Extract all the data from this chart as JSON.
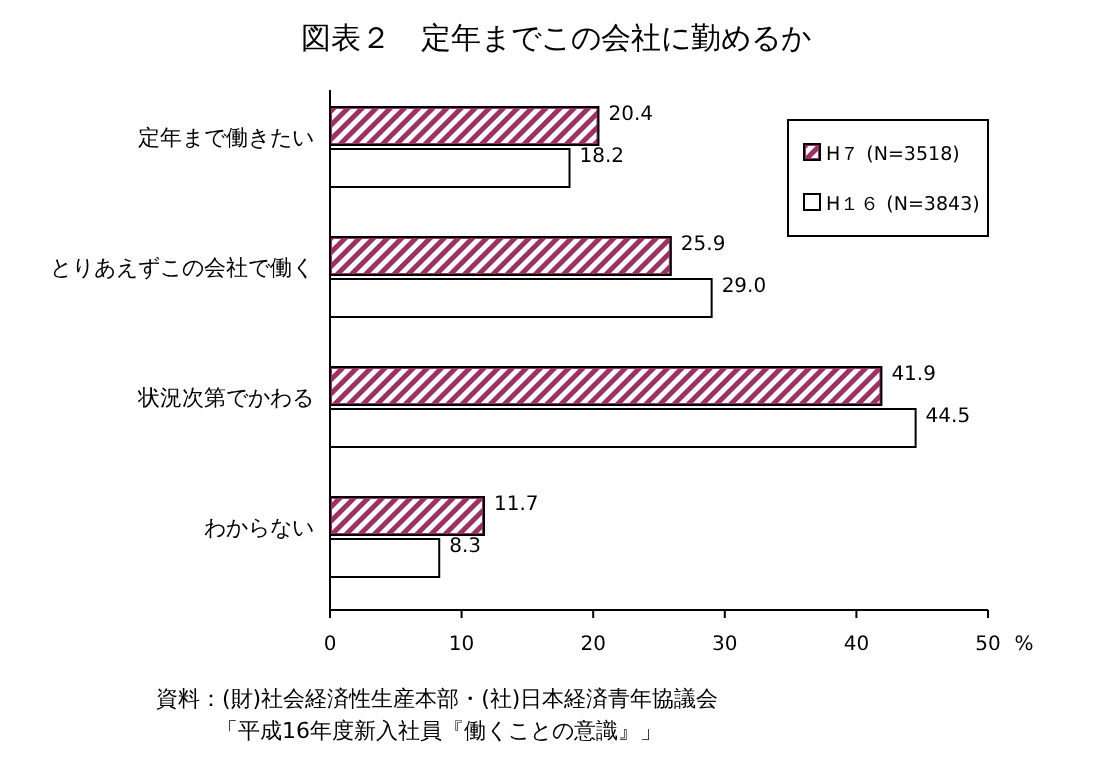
{
  "chart_data": {
    "type": "bar",
    "orientation": "horizontal",
    "title": "図表２　定年までこの会社に勤めるか",
    "xlabel": "%",
    "categories": [
      "定年まで働きたい",
      "とりあえずこの会社で働く",
      "状況次第でかわる",
      "わからない"
    ],
    "series": [
      {
        "name": "H７ (N=3518)",
        "color": "#993366",
        "values": [
          20.4,
          25.9,
          41.9,
          11.7
        ],
        "value_labels": [
          "20.4",
          "25.9",
          "41.9",
          "11.7"
        ]
      },
      {
        "name": "H１６ (N=3843)",
        "color": "#ffffff",
        "values": [
          18.2,
          29.0,
          44.5,
          8.3
        ],
        "value_labels": [
          "18.2",
          "29.0",
          "44.5",
          "8.3"
        ]
      }
    ],
    "xlim": [
      0,
      50
    ],
    "xticks": [
      0,
      10,
      20,
      30,
      40,
      50
    ],
    "grid": false,
    "legend": "top right",
    "annotations": [
      "資料：(財)社会経済性生産本部・(社)日本経済青年協議会",
      "「平成16年度新入社員『働くことの意識』」"
    ]
  }
}
